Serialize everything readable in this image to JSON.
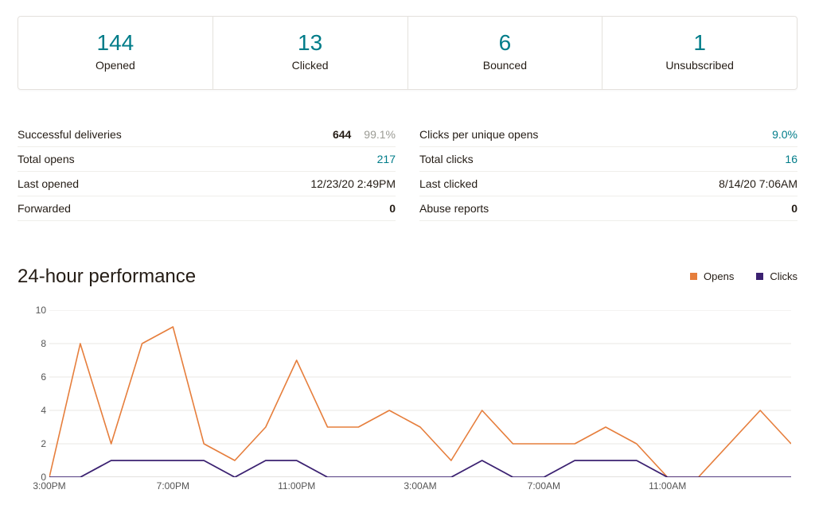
{
  "kpis": [
    {
      "value": "144",
      "label": "Opened"
    },
    {
      "value": "13",
      "label": "Clicked"
    },
    {
      "value": "6",
      "label": "Bounced"
    },
    {
      "value": "1",
      "label": "Unsubscribed"
    }
  ],
  "details_left": [
    {
      "label": "Successful deliveries",
      "values": [
        {
          "text": "644",
          "style": "bold"
        },
        {
          "text": "99.1%",
          "style": "muted"
        }
      ]
    },
    {
      "label": "Total opens",
      "values": [
        {
          "text": "217",
          "style": "link"
        }
      ]
    },
    {
      "label": "Last opened",
      "values": [
        {
          "text": "12/23/20 2:49PM",
          "style": "plain"
        }
      ]
    },
    {
      "label": "Forwarded",
      "values": [
        {
          "text": "0",
          "style": "bold"
        }
      ]
    }
  ],
  "details_right": [
    {
      "label": "Clicks per unique opens",
      "values": [
        {
          "text": "9.0%",
          "style": "link"
        }
      ]
    },
    {
      "label": "Total clicks",
      "values": [
        {
          "text": "16",
          "style": "link"
        }
      ]
    },
    {
      "label": "Last clicked",
      "values": [
        {
          "text": "8/14/20 7:06AM",
          "style": "plain"
        }
      ]
    },
    {
      "label": "Abuse reports",
      "values": [
        {
          "text": "0",
          "style": "bold"
        }
      ]
    }
  ],
  "chart": {
    "title": "24-hour performance",
    "type": "line",
    "background_color": "#ffffff",
    "grid_color": "#e9e7e3",
    "axis_color": "#c6c3be",
    "y": {
      "min": 0,
      "max": 10,
      "ticks": [
        0,
        2,
        4,
        6,
        8,
        10
      ]
    },
    "x_labels_major": [
      {
        "index": 0,
        "text": "3:00PM"
      },
      {
        "index": 4,
        "text": "7:00PM"
      },
      {
        "index": 8,
        "text": "11:00PM"
      },
      {
        "index": 12,
        "text": "3:00AM"
      },
      {
        "index": 16,
        "text": "7:00AM"
      },
      {
        "index": 20,
        "text": "11:00AM"
      }
    ],
    "point_count": 24,
    "gap_after_index": 21,
    "series": [
      {
        "name": "Opens",
        "color": "#e67e3c",
        "line_width": 1.6,
        "values": [
          0,
          8,
          2,
          8,
          9,
          2,
          1,
          3,
          7,
          3,
          3,
          4,
          3,
          1,
          4,
          2,
          2,
          2,
          3,
          2,
          0,
          0,
          4,
          2
        ]
      },
      {
        "name": "Clicks",
        "color": "#3b2171",
        "line_width": 1.8,
        "values": [
          0,
          0,
          1,
          1,
          1,
          1,
          0,
          1,
          1,
          0,
          0,
          0,
          0,
          0,
          1,
          0,
          0,
          1,
          1,
          1,
          0,
          0,
          0,
          0
        ]
      }
    ],
    "legend_items": [
      {
        "label": "Opens",
        "color": "#e67e3c"
      },
      {
        "label": "Clicks",
        "color": "#3b2171"
      }
    ]
  }
}
